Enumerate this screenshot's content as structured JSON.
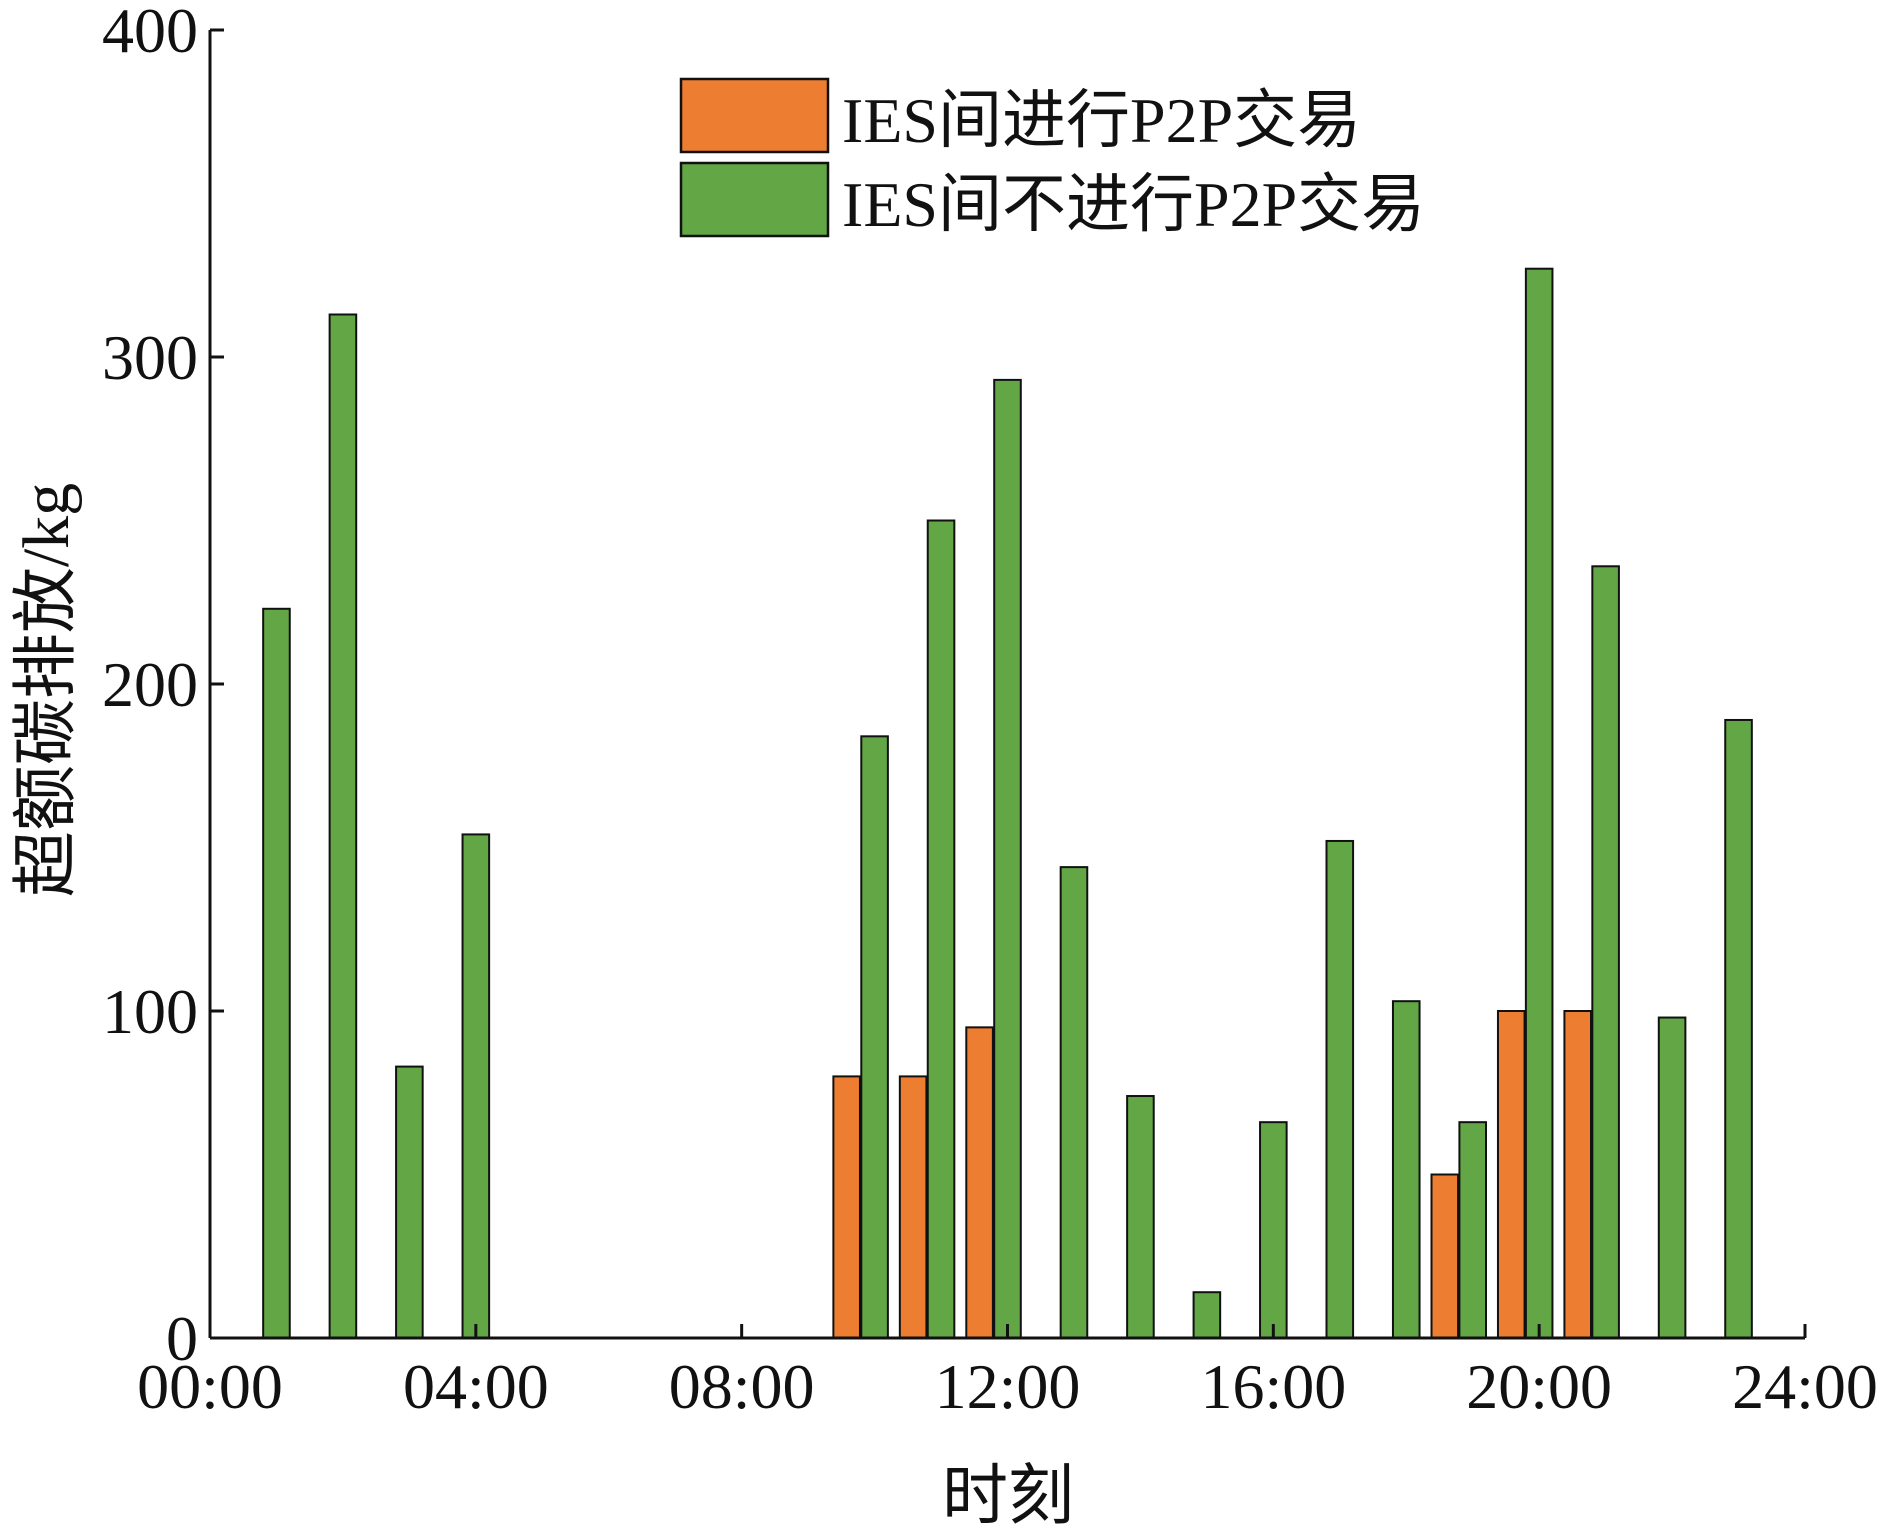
{
  "chart_data": {
    "type": "bar",
    "xlabel": "时刻",
    "ylabel": "超额碳排放/kg",
    "ylim": [
      0,
      400
    ],
    "xlim": [
      0,
      24
    ],
    "yticks": [
      0,
      100,
      200,
      300,
      400
    ],
    "xticks": [
      "00:00",
      "04:00",
      "08:00",
      "12:00",
      "16:00",
      "20:00",
      "24:00"
    ],
    "legend_position": "top-center",
    "grid": false,
    "x": [
      1,
      2,
      3,
      4,
      5,
      6,
      7,
      8,
      9,
      10,
      11,
      12,
      13,
      14,
      15,
      16,
      17,
      18,
      19,
      20,
      21,
      22,
      23
    ],
    "series": [
      {
        "name": "IES间进行P2P交易",
        "color": "#ED7D31",
        "values": [
          0,
          0,
          0,
          0,
          0,
          0,
          0,
          0,
          0,
          80,
          80,
          95,
          0,
          0,
          0,
          0,
          0,
          0,
          50,
          100,
          100,
          0,
          0
        ]
      },
      {
        "name": "IES间不进行P2P交易",
        "color": "#62A646",
        "values": [
          223,
          313,
          83,
          154,
          0,
          0,
          0,
          0,
          0,
          184,
          250,
          293,
          144,
          74,
          14,
          66,
          152,
          103,
          66,
          327,
          236,
          98,
          189
        ]
      }
    ]
  }
}
